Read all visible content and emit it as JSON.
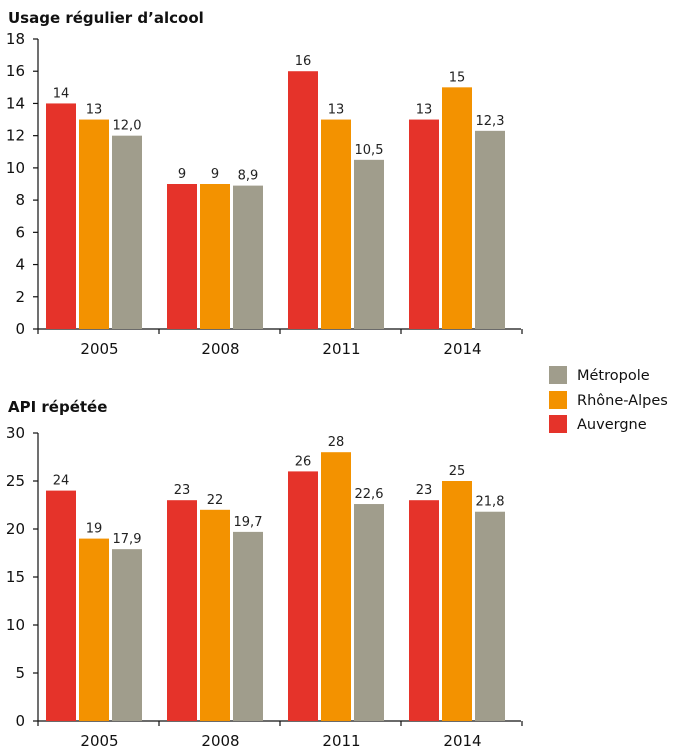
{
  "legend": [
    {
      "label": "Métropole",
      "color": "#a09d8c"
    },
    {
      "label": "Rhône-Alpes",
      "color": "#f39200"
    },
    {
      "label": "Auvergne",
      "color": "#e5332a"
    }
  ],
  "chart_data": [
    {
      "type": "bar",
      "title": "Usage régulier d’alcool",
      "categories": [
        "2005",
        "2008",
        "2011",
        "2014"
      ],
      "ylim": [
        0,
        18
      ],
      "yticks": [
        "0",
        "2",
        "4",
        "6",
        "8",
        "10",
        "12",
        "14",
        "16",
        "18"
      ],
      "series": [
        {
          "name": "Auvergne",
          "color": "#e5332a",
          "values": [
            14,
            9,
            16,
            13
          ],
          "labels": [
            "14",
            "9",
            "16",
            "13"
          ]
        },
        {
          "name": "Rhône-Alpes",
          "color": "#f39200",
          "values": [
            13,
            9,
            13,
            15
          ],
          "labels": [
            "13",
            "9",
            "13",
            "15"
          ]
        },
        {
          "name": "Métropole",
          "color": "#a09d8c",
          "values": [
            12.0,
            8.9,
            10.5,
            12.3
          ],
          "labels": [
            "12,0",
            "8,9",
            "10,5",
            "12,3"
          ]
        }
      ],
      "grid": false
    },
    {
      "type": "bar",
      "title": "API répétée",
      "categories": [
        "2005",
        "2008",
        "2011",
        "2014"
      ],
      "ylim": [
        0,
        30
      ],
      "yticks": [
        "0",
        "5",
        "10",
        "15",
        "20",
        "25",
        "30"
      ],
      "series": [
        {
          "name": "Auvergne",
          "color": "#e5332a",
          "values": [
            24,
            23,
            26,
            23
          ],
          "labels": [
            "24",
            "23",
            "26",
            "23"
          ]
        },
        {
          "name": "Rhône-Alpes",
          "color": "#f39200",
          "values": [
            19,
            22,
            28,
            25
          ],
          "labels": [
            "19",
            "22",
            "28",
            "25"
          ]
        },
        {
          "name": "Métropole",
          "color": "#a09d8c",
          "values": [
            17.9,
            19.7,
            22.6,
            21.8
          ],
          "labels": [
            "17,9",
            "19,7",
            "22,6",
            "21,8"
          ]
        }
      ],
      "grid": false
    }
  ]
}
